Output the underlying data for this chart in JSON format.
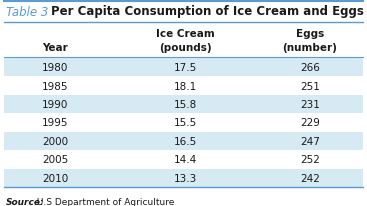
{
  "title_prefix": "Table 3",
  "title_main": "Per Capita Consumption of Ice Cream and Eggs",
  "col_headers_line1": [
    "",
    "Ice Cream",
    "Eggs"
  ],
  "col_headers_line2": [
    "Year",
    "(pounds)",
    "(number)"
  ],
  "years": [
    "1980",
    "1985",
    "1990",
    "1995",
    "2000",
    "2005",
    "2010"
  ],
  "ice_cream": [
    "17.5",
    "18.1",
    "15.8",
    "15.5",
    "16.5",
    "14.4",
    "13.3"
  ],
  "eggs": [
    "266",
    "251",
    "231",
    "229",
    "247",
    "252",
    "242"
  ],
  "source_italic": "Source:",
  "source_plain": " U.S Department of Agriculture",
  "row_shaded_color": "#d6eaf4",
  "row_plain_color": "#ffffff",
  "title_color": "#5b9bd5",
  "title_bold_color": "#1a1a1a",
  "border_color": "#5b9bd5",
  "text_color": "#1a1a1a",
  "figsize": [
    3.67,
    2.07
  ],
  "dpi": 100
}
